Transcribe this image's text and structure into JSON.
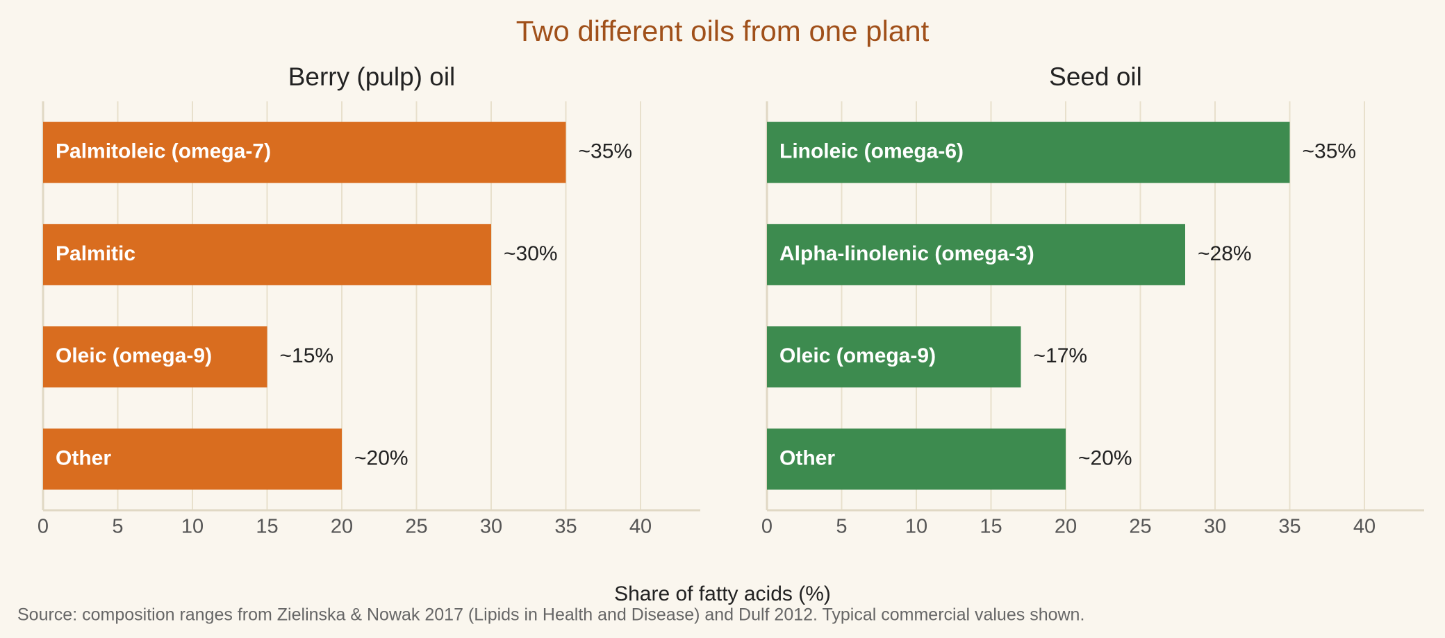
{
  "title": "Two different oils from one plant",
  "xlabel": "Share of fatty acids (%)",
  "source": "Source: composition ranges from Zielinska & Nowak 2017 (Lipids in Health and Disease) and Dulf 2012. Typical commercial values shown.",
  "chart_data": [
    {
      "type": "barh",
      "title": "Berry (pulp) oil",
      "categories": [
        "Palmitoleic (omega-7)",
        "Palmitic",
        "Oleic (omega-9)",
        "Other"
      ],
      "values": [
        35,
        30,
        15,
        20
      ],
      "value_labels": [
        "~35%",
        "~30%",
        "~15%",
        "~20%"
      ],
      "color": "#d96d1f",
      "xlim": [
        0,
        44
      ],
      "xticks": [
        0,
        5,
        10,
        15,
        20,
        25,
        30,
        35,
        40
      ],
      "grid": true
    },
    {
      "type": "barh",
      "title": "Seed oil",
      "categories": [
        "Linoleic (omega-6)",
        "Alpha-linolenic (omega-3)",
        "Oleic (omega-9)",
        "Other"
      ],
      "values": [
        35,
        28,
        17,
        20
      ],
      "value_labels": [
        "~35%",
        "~28%",
        "~17%",
        "~20%"
      ],
      "color": "#3d8b4f",
      "xlim": [
        0,
        44
      ],
      "xticks": [
        0,
        5,
        10,
        15,
        20,
        25,
        30,
        35,
        40
      ],
      "grid": true
    }
  ]
}
